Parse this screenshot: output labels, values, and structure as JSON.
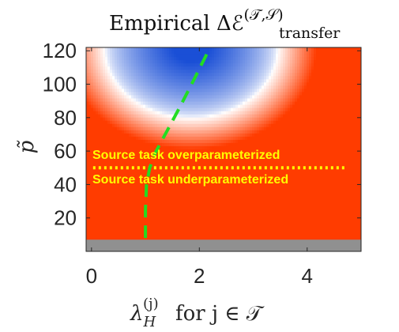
{
  "chart_data": {
    "type": "heatmap",
    "title": "Empirical Δℰ",
    "title_superscript": "(𝒯,𝒮)",
    "title_subscript": "transfer",
    "xlabel_main": "λ",
    "xlabel_sub": "H",
    "xlabel_sup": "(j)",
    "xlabel_rest": "for j ∈ 𝒯",
    "ylabel": "p̃",
    "xlim": [
      -0.1,
      5.0
    ],
    "ylim": [
      0,
      122
    ],
    "xticks": [
      0,
      2,
      4
    ],
    "yticks": [
      20,
      40,
      60,
      80,
      100,
      120
    ],
    "colors": {
      "positive": "#ff3c00",
      "negative": "#1a4fd6",
      "neutral": "#ffffff",
      "undefined": "#909090",
      "boundary_line": "#22dd22",
      "threshold_line": "#ffff00"
    },
    "undefined_region": {
      "y_min": 0,
      "y_max": 7
    },
    "threshold": {
      "y": 50,
      "label_above": "Source task overparameterized",
      "label_below": "Source task underparameterized"
    },
    "boundary_curve": {
      "x": [
        1.0,
        1.0,
        1.02,
        1.08,
        1.2,
        1.4,
        1.65,
        1.92,
        2.2
      ],
      "y": [
        8,
        25,
        40,
        50,
        60,
        72,
        87,
        104,
        122
      ]
    }
  }
}
